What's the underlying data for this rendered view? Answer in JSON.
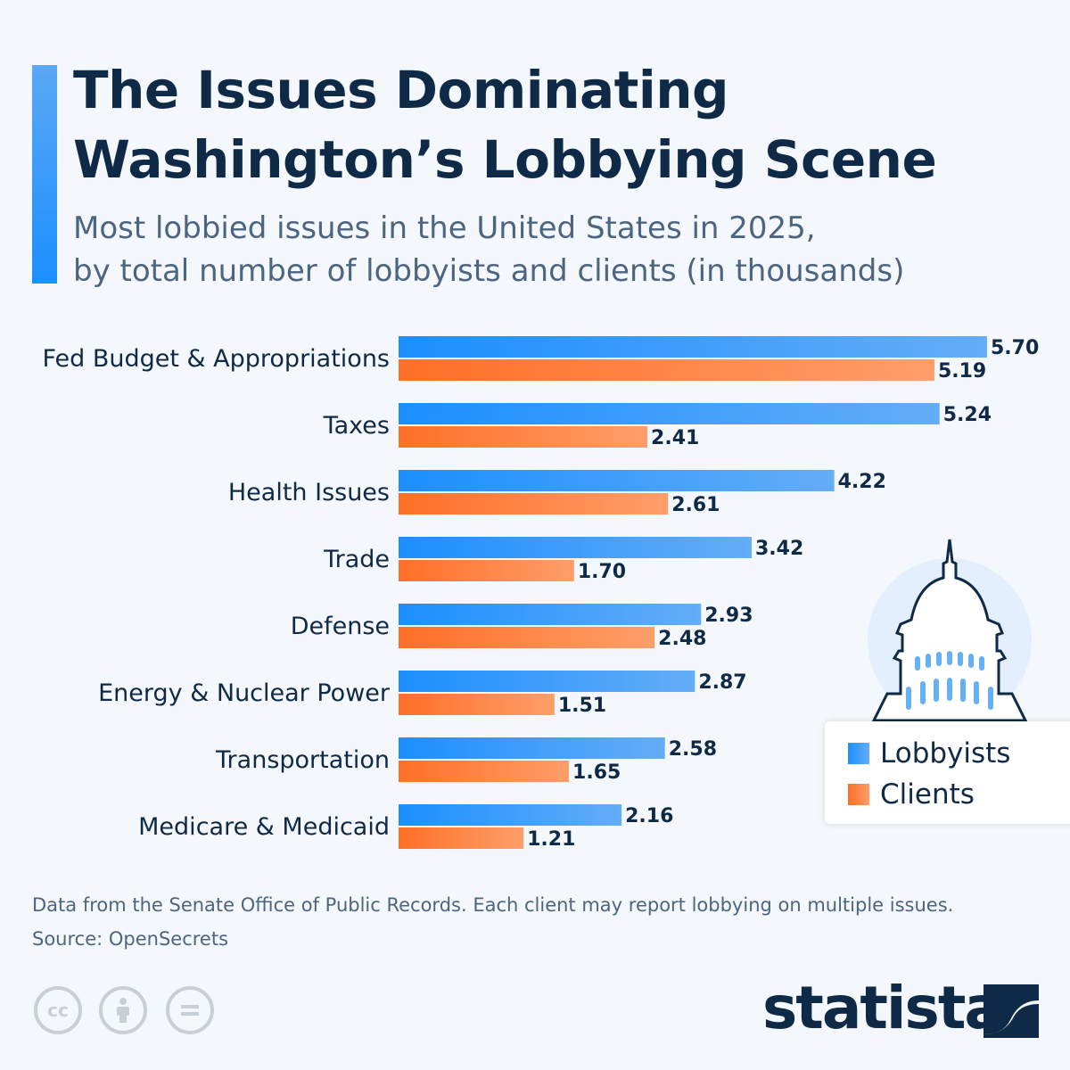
{
  "title_line1": "The Issues Dominating",
  "title_line2": "Washington’s Lobbying Scene",
  "subtitle_line1": "Most lobbied issues in the United States in 2025,",
  "subtitle_line2": "by total number of lobbyists and clients (in thousands)",
  "chart_data": {
    "type": "bar",
    "orientation": "horizontal",
    "categories": [
      "Fed Budget & Appropriations",
      "Taxes",
      "Health Issues",
      "Trade",
      "Defense",
      "Energy & Nuclear Power",
      "Transportation",
      "Medicare & Medicaid"
    ],
    "series": [
      {
        "name": "Lobbyists",
        "values": [
          5.7,
          5.24,
          4.22,
          3.42,
          2.93,
          2.87,
          2.58,
          2.16
        ],
        "color": "#1b8fff"
      },
      {
        "name": "Clients",
        "values": [
          5.19,
          2.41,
          2.61,
          1.7,
          2.48,
          1.51,
          1.65,
          1.21
        ],
        "color": "#ff6f26"
      }
    ],
    "unit": "thousands",
    "legend_position": "right",
    "grid": false
  },
  "legend": {
    "lobbyists": "Lobbyists",
    "clients": "Clients"
  },
  "footer": {
    "note": "Data from the Senate Office of Public Records. Each client may report lobbying on multiple issues.",
    "source": "Source: OpenSecrets"
  },
  "license_icons": [
    "cc-icon",
    "attribution-icon",
    "no-derivatives-icon"
  ],
  "brand": "statista",
  "colors": {
    "accent": "#1b8fff",
    "clients": "#ff6f26",
    "text": "#0f2a47",
    "background": "#f4f7fb"
  }
}
